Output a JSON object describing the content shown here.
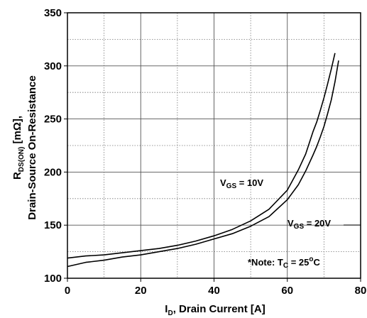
{
  "chart_data": {
    "type": "line",
    "xlabel": {
      "main": "I",
      "sub": "D",
      "rest": ", Drain Current [A]"
    },
    "ylabel": {
      "line1": {
        "main": "R",
        "sub": "DS(ON)",
        "rest": " [mΩ],"
      },
      "line2": "Drain-Source On-Resistance"
    },
    "xlim": [
      0,
      80
    ],
    "ylim": [
      100,
      350
    ],
    "xticks": [
      "0",
      "20",
      "40",
      "60",
      "80"
    ],
    "yticks": [
      "100",
      "150",
      "200",
      "250",
      "300",
      "350"
    ],
    "grid": "dotted",
    "series": [
      {
        "name": "VGS = 10V",
        "x": [
          0,
          5,
          10,
          15,
          20,
          25,
          30,
          35,
          40,
          45,
          50,
          55,
          60,
          63,
          65,
          67,
          68,
          69,
          70,
          71,
          72,
          73
        ],
        "y": [
          119,
          121,
          122,
          124,
          126,
          128,
          131,
          135,
          140,
          146,
          154,
          165,
          183,
          202,
          217,
          238,
          247,
          258,
          270,
          283,
          297,
          312
        ]
      },
      {
        "name": "VGS = 20V",
        "x": [
          0,
          5,
          10,
          15,
          20,
          25,
          30,
          35,
          40,
          45,
          50,
          55,
          60,
          63,
          65,
          67,
          68,
          69,
          70,
          71,
          72,
          73,
          74
        ],
        "y": [
          111,
          115,
          117,
          120,
          122,
          125,
          128,
          132,
          137,
          142,
          149,
          158,
          174,
          188,
          201,
          216,
          224,
          233,
          243,
          255,
          268,
          285,
          305
        ]
      }
    ],
    "annotations": {
      "vgs10": {
        "pre": "V",
        "sub": "GS",
        "post": " = 10V"
      },
      "vgs20": {
        "pre": "V",
        "sub": "GS",
        "post": " = 20V"
      },
      "note": {
        "pre": "*Note: T",
        "sub": "C",
        "mid": " = 25",
        "sup": "o",
        "post": "C"
      }
    }
  }
}
